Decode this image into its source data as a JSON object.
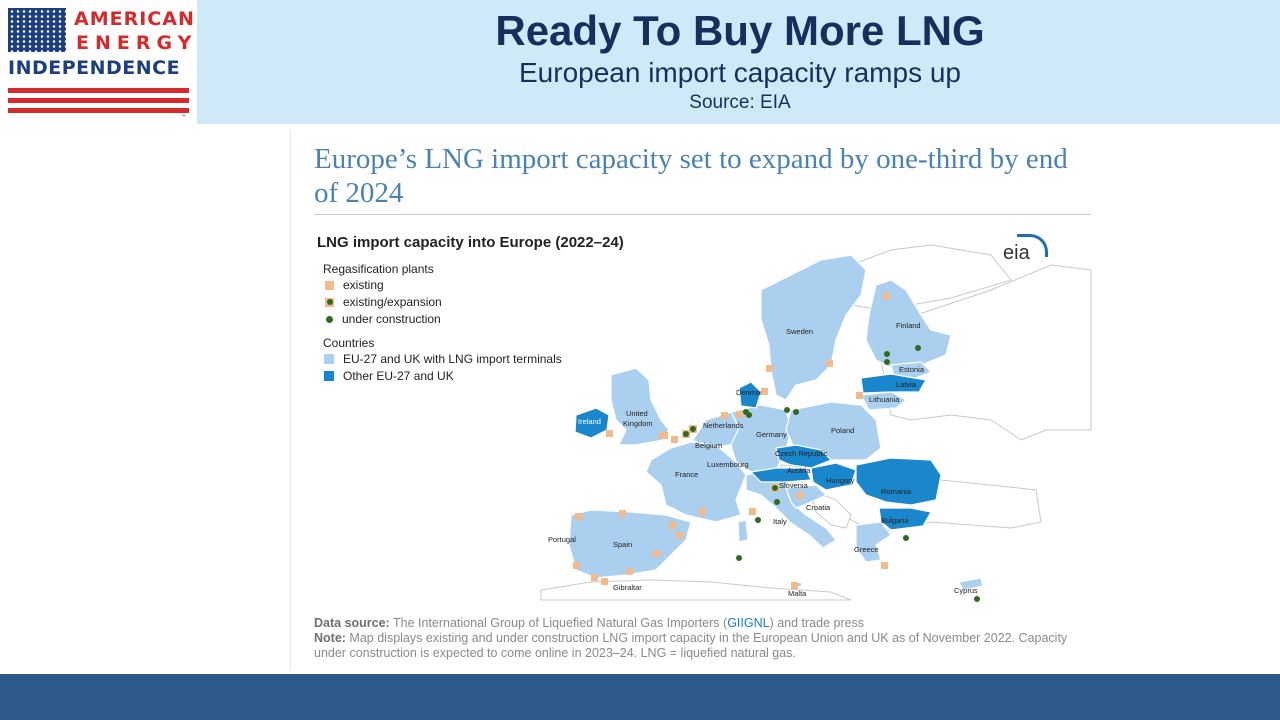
{
  "logo": {
    "line1": "AMERICAN",
    "line2": "ENERGY",
    "line3": "INDEPENDENCE",
    "trademark": "™",
    "colors": {
      "red": "#d62a2a",
      "blue": "#1e3f7e"
    }
  },
  "header": {
    "title": "Ready To Buy More LNG",
    "subtitle": "European import capacity ramps up",
    "source": "Source: EIA",
    "background": "#cfe9f9",
    "text_color": "#16305e"
  },
  "figure": {
    "headline": "Europe’s LNG import capacity set to expand by one-third by end of 2024",
    "map_title": "LNG import capacity into Europe (2022–24)",
    "logo_text": "eia",
    "legend": {
      "plants_heading": "Regasification plants",
      "plants": [
        {
          "label": "existing",
          "symbol": "orange-square-icon"
        },
        {
          "label": "existing/expansion",
          "symbol": "orange-square-green-dot-icon"
        },
        {
          "label": "under construction",
          "symbol": "green-dot-icon"
        }
      ],
      "countries_heading": "Countries",
      "countries": [
        {
          "label": "EU-27 and UK with LNG import terminals",
          "color": "#abd0ef"
        },
        {
          "label": "Other EU-27 and UK",
          "color": "#1a86cb"
        }
      ]
    },
    "country_labels": {
      "sweden": "Sweden",
      "finland": "Finland",
      "estonia": "Estonia",
      "latvia": "Latvia",
      "lithuania": "Lithuania",
      "denmark": "Denmark",
      "ireland": "Ireland",
      "united": "United",
      "kingdom": "Kingdom",
      "netherlands": "Netherlands",
      "belgium": "Belgium",
      "germany": "Germany",
      "poland": "Poland",
      "luxembourg": "Luxembourg",
      "czech": "Czech Republic",
      "france": "France",
      "austria": "Austria",
      "slovenia": "Slovenia",
      "hungary": "Hungary",
      "romania": "Romania",
      "croatia": "Croatia",
      "italy": "Italy",
      "bulgaria": "Bulgaria",
      "portugal": "Portugal",
      "spain": "Spain",
      "greece": "Greece",
      "gibraltar": "Gibraltar",
      "malta": "Malta",
      "cyprus": "Cyprus"
    },
    "notes": {
      "source_label": "Data source:",
      "source_text_1": " The International Group of Liquefied Natural Gas Importers (",
      "source_link": "GIIGNL",
      "source_text_2": ") and trade press",
      "note_label": "Note:",
      "note_text": " Map displays existing and under construction LNG import capacity in the European Union and UK as of November 2022. Capacity under construction is expected to come online in 2023–24. LNG = liquefied natural gas."
    },
    "colors": {
      "headline": "#4a82b3",
      "terminal_country": "#abd0ef",
      "other_country": "#1a86cb",
      "existing_plant": "#f3b98a",
      "construction_plant": "#2e6b1c"
    }
  },
  "footer": {
    "background": "#2d5a8a"
  }
}
